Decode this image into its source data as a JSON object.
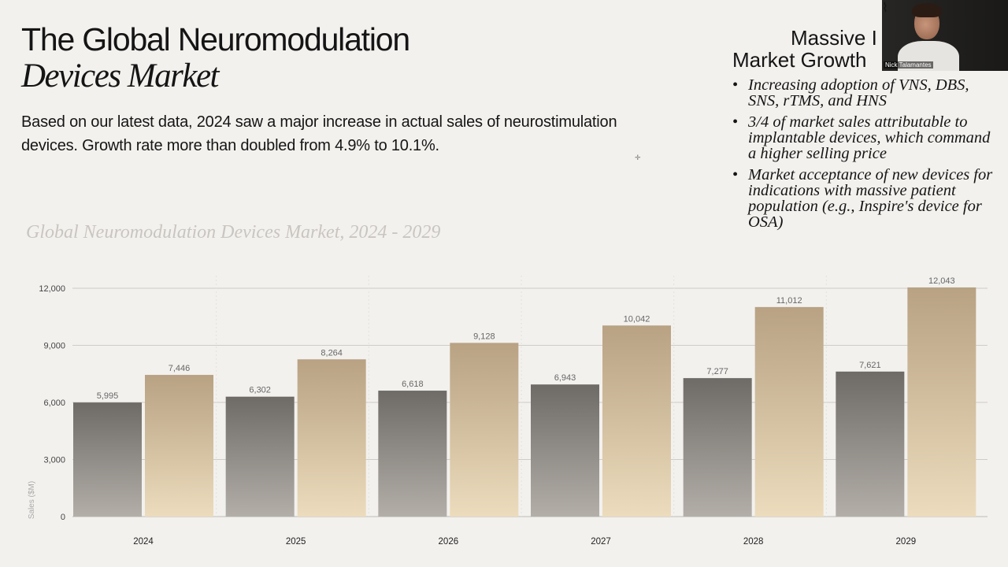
{
  "slide": {
    "title_line1": "The Global Neuromodulation",
    "title_line2": "Devices Market",
    "intro": "Based on our latest data, 2024 saw a major increase in actual sales of neurostimulation devices. Growth rate more than doubled from 4.9% to 10.1%."
  },
  "sidebar": {
    "heading_line1": "Massive I",
    "heading_line2": "Market Growth",
    "bullets": [
      "Increasing adoption of VNS, DBS, SNS, rTMS, and HNS",
      "3/4 of market sales attributable to implantable devices, which command a higher selling price",
      "Market acceptance of new devices for indications with massive patient population (e.g., Inspire's device for OSA)"
    ]
  },
  "webcam": {
    "participant_name": "Nick Talamantes",
    "mic_icon": "muted-mic-icon"
  },
  "colors": {
    "background": "#f3f1ee",
    "series1_top": "#6e6b67",
    "series1_bottom": "#b3aea8",
    "series2_top": "#b8a283",
    "series2_bottom": "#ecdcbd"
  },
  "chart_data": {
    "type": "bar",
    "title": "Global Neuromodulation Devices Market, 2024 - 2029",
    "categories": [
      "2024",
      "2025",
      "2026",
      "2027",
      "2028",
      "2029"
    ],
    "series": [
      {
        "values": [
          5995,
          6302,
          6618,
          6943,
          7277,
          7621
        ]
      },
      {
        "values": [
          7446,
          8264,
          9128,
          10042,
          11012,
          12043
        ]
      }
    ],
    "value_labels": [
      [
        "5,995",
        "6,302",
        "6,618",
        "6,943",
        "7,277",
        "7,621"
      ],
      [
        "7,446",
        "8,264",
        "9,128",
        "10,042",
        "11,012",
        "12,043"
      ]
    ],
    "yticks": [
      0,
      3000,
      6000,
      9000,
      12000
    ],
    "ytick_labels": [
      "0",
      "3,000",
      "6,000",
      "9,000",
      "12,000"
    ],
    "ylabel": "Sales ($M)",
    "xlabel": "",
    "ylim": [
      0,
      12000
    ],
    "grid": true,
    "legend": "none"
  }
}
